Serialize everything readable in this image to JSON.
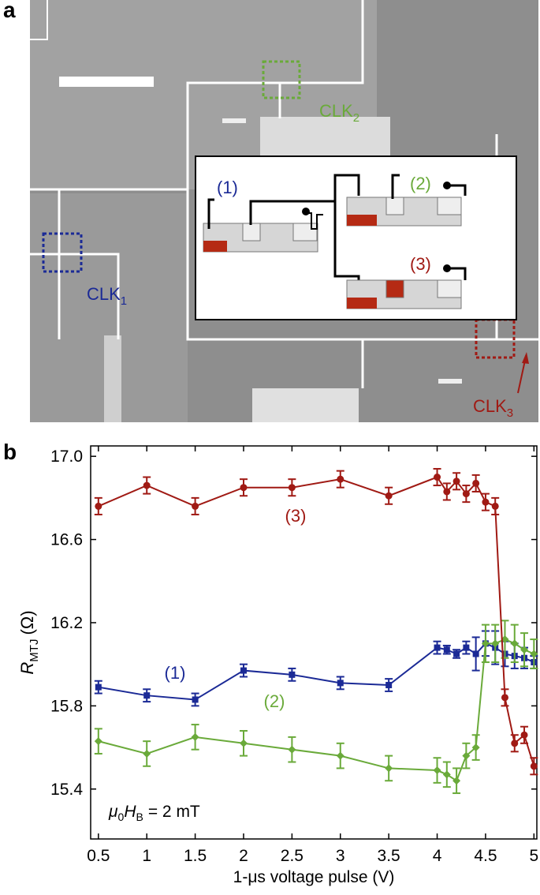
{
  "panel_a": {
    "label": "a",
    "clk_labels": [
      {
        "text": "CLK",
        "sub": "1"
      },
      {
        "text": "CLK",
        "sub": "2"
      },
      {
        "text": "CLK",
        "sub": "3"
      }
    ],
    "inset_labels": [
      "(1)",
      "(2)",
      "(3)"
    ]
  },
  "chart_data": {
    "type": "line",
    "panel_label": "b",
    "xlabel": "1-μs voltage pulse (V)",
    "ylabel": {
      "symbol": "R",
      "sub": "MTJ",
      "unit": "(Ω)"
    },
    "annotation": {
      "mu": "μ",
      "mu_sub": "0",
      "h": "H",
      "h_sub": "B",
      "rest": "= 2 mT"
    },
    "x": [
      0.5,
      1,
      1.5,
      2,
      2.5,
      3,
      3.5,
      4,
      4.1,
      4.2,
      4.3,
      4.4,
      4.5,
      4.6,
      4.7,
      4.8,
      4.9,
      5
    ],
    "series": [
      {
        "name": "(1)",
        "color": "#1b2a96",
        "marker": "square",
        "values": [
          15.89,
          15.85,
          15.83,
          15.97,
          15.95,
          15.91,
          15.9,
          16.08,
          16.07,
          16.05,
          16.08,
          16.05,
          16.1,
          16.08,
          16.05,
          16.04,
          16.03,
          16.01
        ],
        "errors": [
          0.03,
          0.03,
          0.03,
          0.03,
          0.03,
          0.03,
          0.03,
          0.03,
          0.02,
          0.02,
          0.03,
          0.08,
          0.06,
          0.08,
          0.06,
          0.06,
          0.05,
          0.03
        ]
      },
      {
        "name": "(2)",
        "color": "#6aaa3a",
        "marker": "diamond",
        "values": [
          15.63,
          15.57,
          15.65,
          15.62,
          15.59,
          15.56,
          15.5,
          15.49,
          15.47,
          15.44,
          15.56,
          15.6,
          16.1,
          16.1,
          16.12,
          16.1,
          16.07,
          16.05
        ],
        "errors": [
          0.06,
          0.06,
          0.06,
          0.06,
          0.06,
          0.06,
          0.06,
          0.06,
          0.06,
          0.06,
          0.06,
          0.06,
          0.09,
          0.09,
          0.09,
          0.09,
          0.08,
          0.07
        ]
      },
      {
        "name": "(3)",
        "color": "#a01a14",
        "marker": "circle",
        "values": [
          16.76,
          16.86,
          16.76,
          16.85,
          16.85,
          16.89,
          16.81,
          16.9,
          16.83,
          16.88,
          16.82,
          16.87,
          16.78,
          16.76,
          15.84,
          15.62,
          15.66,
          15.51
        ],
        "errors": [
          0.04,
          0.04,
          0.04,
          0.04,
          0.04,
          0.04,
          0.04,
          0.04,
          0.04,
          0.04,
          0.04,
          0.04,
          0.04,
          0.04,
          0.04,
          0.04,
          0.04,
          0.04
        ]
      }
    ],
    "xlim": [
      0.42,
      5.03
    ],
    "ylim": [
      15.16,
      17.05
    ],
    "xticks": [
      0.5,
      1,
      1.5,
      2,
      2.5,
      3,
      3.5,
      4,
      4.5,
      5
    ],
    "yticks": [
      {
        "value": 15.4,
        "label": "15.4"
      },
      {
        "value": 15.8,
        "label": "15.8"
      },
      {
        "value": 16.2,
        "label": "16.2"
      },
      {
        "value": 16.6,
        "label": "16.6"
      },
      {
        "value": 17,
        "label": "17.0"
      }
    ]
  }
}
